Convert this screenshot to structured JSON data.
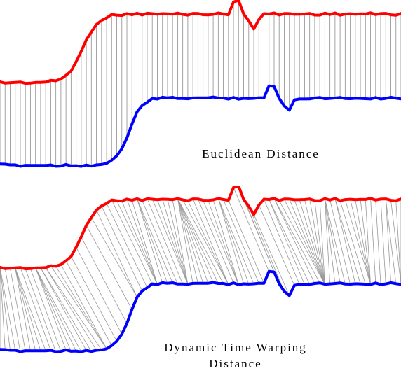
{
  "panels": [
    {
      "label": "Euclidean Distance",
      "alignment": "euclidean"
    },
    {
      "label_line1": "Dynamic Time Warping",
      "label_line2": "Distance",
      "alignment": "dtw"
    }
  ],
  "series": {
    "top_color": "#ff0000",
    "bottom_color": "#0000ff",
    "connector_color": "#999999"
  }
}
